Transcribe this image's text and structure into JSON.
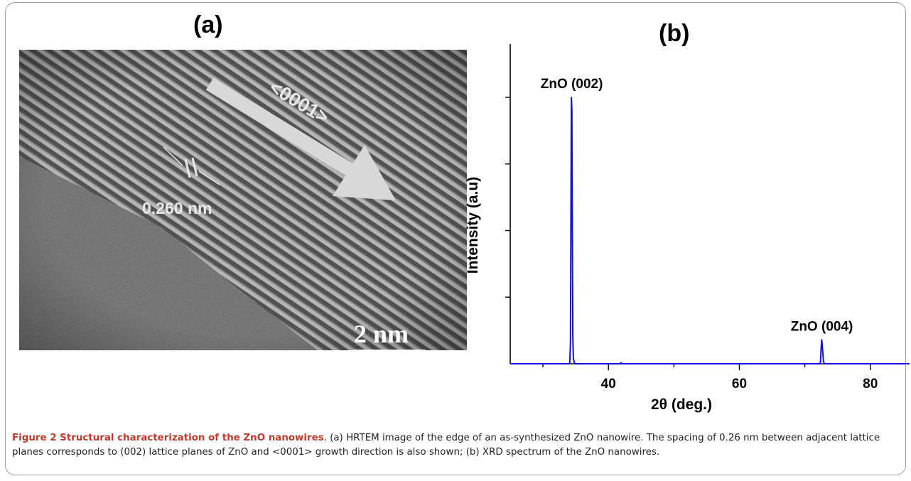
{
  "figure": {
    "panel_a_label": "(a)",
    "panel_b_label": "(b)"
  },
  "tem": {
    "direction_label": "<0001>",
    "spacing_label": "0.260 nm",
    "scale_bar_label": "2 nm"
  },
  "chart_data": {
    "type": "line",
    "xlabel": "2θ (deg.)",
    "ylabel": "Intensity (a.u)",
    "xlim": [
      25,
      86
    ],
    "ylim": [
      0,
      1.2
    ],
    "x_ticks": [
      40,
      60,
      80
    ],
    "x_minor_ticks": [
      30,
      50,
      70
    ],
    "y_ticks": [
      0.25,
      0.5,
      0.75,
      1.0
    ],
    "grid": false,
    "series": [
      {
        "color": "#1010e0",
        "points": [
          [
            25,
            0
          ],
          [
            34.0,
            0
          ],
          [
            34.1,
            0.005
          ],
          [
            34.2,
            0.08
          ],
          [
            34.28,
            0.6
          ],
          [
            34.35,
            1.0
          ],
          [
            34.42,
            0.95
          ],
          [
            34.5,
            0.45
          ],
          [
            34.56,
            0.1
          ],
          [
            34.65,
            0.02
          ],
          [
            34.8,
            0.004
          ],
          [
            35.0,
            0
          ],
          [
            41.8,
            0
          ],
          [
            41.9,
            0.004
          ],
          [
            42.0,
            0
          ],
          [
            72.3,
            0
          ],
          [
            72.4,
            0.01
          ],
          [
            72.5,
            0.06
          ],
          [
            72.58,
            0.09
          ],
          [
            72.66,
            0.07
          ],
          [
            72.75,
            0.04
          ],
          [
            72.85,
            0.01
          ],
          [
            73.0,
            0
          ],
          [
            86,
            0
          ]
        ]
      }
    ],
    "annotations": [
      {
        "text": "ZnO (002)",
        "x": 34.4,
        "y": 1.0
      },
      {
        "text": "ZnO (004)",
        "x": 72.6,
        "y": 0.09
      }
    ]
  },
  "caption": {
    "title": "Figure 2 Structural characterization of the ZnO nanowires",
    "text": ". (a) HRTEM image of the edge of an as-synthesized ZnO nanowire. The spacing of 0.26 nm between adjacent lattice planes corresponds to (002) lattice planes of ZnO and <0001> growth direction is also shown; (b) XRD spectrum of the ZnO nanowires."
  }
}
